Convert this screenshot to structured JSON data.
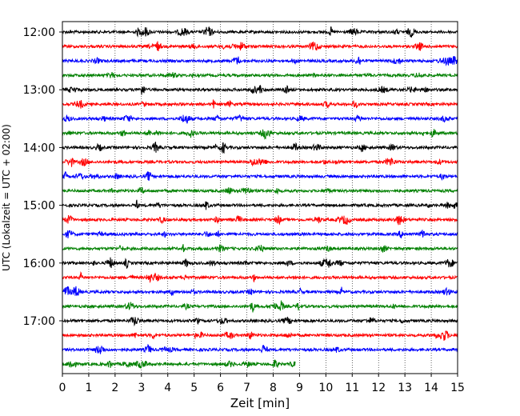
{
  "chart_data": {
    "type": "line",
    "title": "",
    "xlabel": "Zeit  [min]",
    "ylabel": "UTC (Lokalzeit = UTC + 02:00)",
    "xlim": [
      0,
      15
    ],
    "x_ticks": [
      0,
      1,
      2,
      3,
      4,
      5,
      6,
      7,
      8,
      9,
      10,
      11,
      12,
      13,
      14,
      15
    ],
    "y_tick_labels": [
      "12:00",
      "13:00",
      "14:00",
      "15:00",
      "16:00",
      "17:00"
    ],
    "grid": "vertical dotted at each minute",
    "trace_colors_cycle": [
      "#000000",
      "#ff0000",
      "#0000ff",
      "#008000"
    ],
    "traces": [
      {
        "start": "12:00",
        "color": "#000000",
        "duration_min": 15
      },
      {
        "start": "12:15",
        "color": "#ff0000",
        "duration_min": 15
      },
      {
        "start": "12:30",
        "color": "#0000ff",
        "duration_min": 15
      },
      {
        "start": "12:45",
        "color": "#008000",
        "duration_min": 15
      },
      {
        "start": "13:00",
        "color": "#000000",
        "duration_min": 15
      },
      {
        "start": "13:15",
        "color": "#ff0000",
        "duration_min": 15
      },
      {
        "start": "13:30",
        "color": "#0000ff",
        "duration_min": 15
      },
      {
        "start": "13:45",
        "color": "#008000",
        "duration_min": 15
      },
      {
        "start": "14:00",
        "color": "#000000",
        "duration_min": 15
      },
      {
        "start": "14:15",
        "color": "#ff0000",
        "duration_min": 15
      },
      {
        "start": "14:30",
        "color": "#0000ff",
        "duration_min": 15
      },
      {
        "start": "14:45",
        "color": "#008000",
        "duration_min": 15
      },
      {
        "start": "15:00",
        "color": "#000000",
        "duration_min": 15
      },
      {
        "start": "15:15",
        "color": "#ff0000",
        "duration_min": 15
      },
      {
        "start": "15:30",
        "color": "#0000ff",
        "duration_min": 15
      },
      {
        "start": "15:45",
        "color": "#008000",
        "duration_min": 15
      },
      {
        "start": "16:00",
        "color": "#000000",
        "duration_min": 15
      },
      {
        "start": "16:15",
        "color": "#ff0000",
        "duration_min": 15
      },
      {
        "start": "16:30",
        "color": "#0000ff",
        "duration_min": 15
      },
      {
        "start": "16:45",
        "color": "#008000",
        "duration_min": 15
      },
      {
        "start": "17:00",
        "color": "#000000",
        "duration_min": 15
      },
      {
        "start": "17:15",
        "color": "#ff0000",
        "duration_min": 15
      },
      {
        "start": "17:30",
        "color": "#0000ff",
        "duration_min": 15
      },
      {
        "start": "17:45",
        "color": "#008000",
        "duration_min": 8.85
      }
    ]
  }
}
